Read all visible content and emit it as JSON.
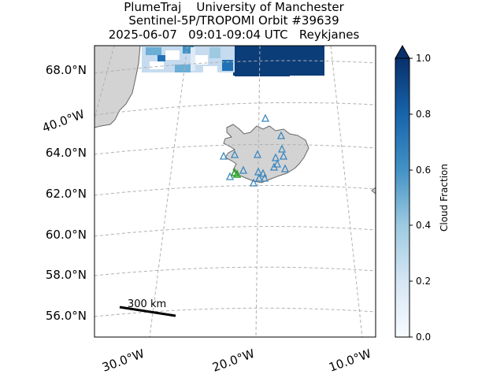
{
  "header": {
    "line1": "PlumeTraj    University of Manchester",
    "line2": "Sentinel-5P/TROPOMI Orbit #39639",
    "line3": "2025-06-07   09:01-09:04 UTC   Reykjanes"
  },
  "map": {
    "lat_labels": [
      "68.0°N",
      "64.0°N",
      "62.0°N",
      "60.0°N",
      "58.0°N",
      "56.0°N"
    ],
    "lon_labels": [
      "30.0°W",
      "20.0°W",
      "10.0°W"
    ],
    "side_lon_label": "40.0°W",
    "scale_bar_label": "300 km",
    "colors": {
      "land": "#d3d3d3",
      "coast": "#666666",
      "grid": "#b0b0b0",
      "volcano_marker": "#3a87c0",
      "source_marker": "#2ca02c"
    }
  },
  "colorbar": {
    "label": "Cloud Fraction",
    "ticks": [
      "0.0",
      "0.2",
      "0.4",
      "0.6",
      "0.8",
      "1.0"
    ],
    "colormap": "Blues"
  }
}
